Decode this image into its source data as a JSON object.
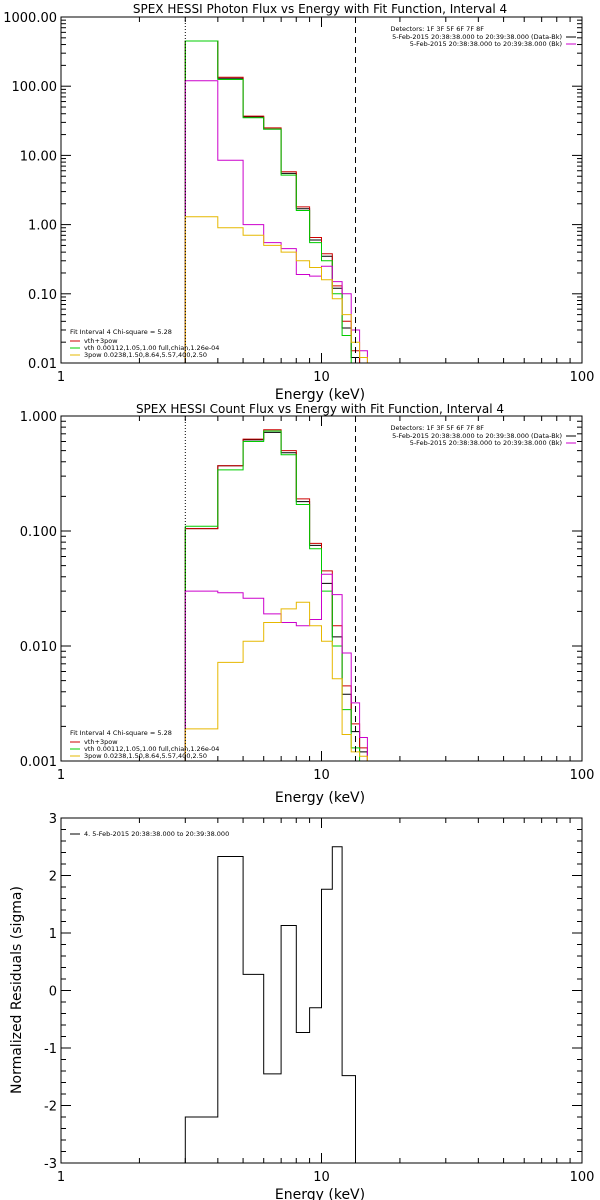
{
  "chart_data": [
    {
      "type": "line",
      "title": "SPEX HESSI Photon Flux vs Energy with Fit Function, Interval 4",
      "xlabel": "Energy (keV)",
      "ylabel": "",
      "x_scale": "log",
      "y_scale": "log",
      "xlim": [
        1,
        100
      ],
      "ylim": [
        0.01,
        1000
      ],
      "x_ticks": [
        "1",
        "10",
        "100"
      ],
      "y_ticks": [
        "0.01",
        "0.10",
        "1.00",
        "10.00",
        "100.00",
        "1000.00"
      ],
      "grid": false,
      "bin_edges": [
        3,
        4,
        5,
        6,
        7,
        8,
        9,
        10,
        11,
        12,
        13,
        14,
        15,
        16.5
      ],
      "dotted_line_x": 3,
      "dashed_line_x": 13.5,
      "header": {
        "detectors": "Detectors: 1F 3F 5F 6F 7F 8F",
        "lines": [
          {
            "text": "5-Feb-2015 20:38:38.000 to 20:39:38.000 (Data-Bk)",
            "color": "#000000"
          },
          {
            "text": "5-Feb-2015 20:38:38.000 to 20:39:38.000 (Bk)",
            "color": "#cc00cc"
          }
        ]
      },
      "legend": {
        "title": "Fit Interval  4   Chi-square = 5.28",
        "position": "bottom-left",
        "items": [
          {
            "text": "vth+3pow",
            "color": "#cc0000"
          },
          {
            "text": "vth 0.00112,1.05,1.00  full,chian,1.26e-04",
            "color": "#00cc00"
          },
          {
            "text": "3pow 0.0238,1.50,8.64,5.57,400,2.50",
            "color": "#e6b800"
          }
        ]
      },
      "series": [
        {
          "color": "#000000",
          "values": [
            450,
            130,
            36,
            24,
            5.5,
            1.7,
            0.6,
            0.35,
            0.12,
            0.032,
            0.012,
            0.009,
            0.009
          ]
        },
        {
          "color": "#cc0000",
          "values": [
            450,
            135,
            37,
            25,
            5.8,
            1.8,
            0.65,
            0.38,
            0.13,
            0.04,
            0.015,
            0.01,
            0.009
          ]
        },
        {
          "color": "#00cc00",
          "values": [
            450,
            125,
            35,
            24,
            5.2,
            1.6,
            0.55,
            0.3,
            0.1,
            0.025,
            0.009,
            0.008,
            0.008
          ]
        },
        {
          "color": "#cc00cc",
          "values": [
            120,
            8.5,
            1.0,
            0.55,
            0.45,
            0.19,
            0.18,
            0.25,
            0.15,
            0.1,
            0.03,
            0.015,
            0.01
          ]
        },
        {
          "color": "#e6b800",
          "values": [
            1.3,
            0.9,
            0.7,
            0.5,
            0.4,
            0.3,
            0.24,
            0.16,
            0.085,
            0.05,
            0.02,
            0.012,
            0.01
          ]
        }
      ]
    },
    {
      "type": "line",
      "title": "SPEX HESSI Count Flux vs Energy with Fit Function, Interval 4",
      "xlabel": "Energy (keV)",
      "ylabel": "",
      "x_scale": "log",
      "y_scale": "log",
      "xlim": [
        1,
        100
      ],
      "ylim": [
        0.001,
        1
      ],
      "x_ticks": [
        "1",
        "10",
        "100"
      ],
      "y_ticks": [
        "0.001",
        "0.010",
        "0.100",
        "1.000"
      ],
      "grid": false,
      "bin_edges": [
        3,
        4,
        5,
        6,
        7,
        8,
        9,
        10,
        11,
        12,
        13,
        14,
        15,
        16.5
      ],
      "dotted_line_x": 3,
      "dashed_line_x": 13.5,
      "header": {
        "detectors": "Detectors: 1F 3F 5F 6F 7F 8F",
        "lines": [
          {
            "text": "5-Feb-2015 20:38:38.000 to 20:39:38.000 (Data-Bk)",
            "color": "#000000"
          },
          {
            "text": "5-Feb-2015 20:38:38.000 to 20:39:38.000 (Bk)",
            "color": "#cc00cc"
          }
        ]
      },
      "legend": {
        "title": "Fit Interval  4   Chi-square = 5.28",
        "position": "bottom-left",
        "items": [
          {
            "text": "vth+3pow",
            "color": "#cc0000"
          },
          {
            "text": "vth 0.00112,1.05,1.00  full,chian,1.26e-04",
            "color": "#00cc00"
          },
          {
            "text": "3pow 0.0238,1.50,8.64,5.57,400,2.50",
            "color": "#e6b800"
          }
        ]
      },
      "series": [
        {
          "color": "#000000",
          "values": [
            0.105,
            0.37,
            0.62,
            0.72,
            0.48,
            0.18,
            0.075,
            0.035,
            0.012,
            0.0038,
            0.0018,
            0.0012,
            0.001
          ]
        },
        {
          "color": "#cc0000",
          "values": [
            0.105,
            0.37,
            0.63,
            0.76,
            0.5,
            0.19,
            0.078,
            0.045,
            0.015,
            0.0045,
            0.0021,
            0.0013,
            0.001
          ]
        },
        {
          "color": "#00cc00",
          "values": [
            0.11,
            0.34,
            0.6,
            0.74,
            0.46,
            0.17,
            0.07,
            0.03,
            0.01,
            0.0028,
            0.0013,
            0.001,
            0.001
          ]
        },
        {
          "color": "#cc00cc",
          "values": [
            0.03,
            0.029,
            0.026,
            0.019,
            0.016,
            0.015,
            0.017,
            0.042,
            0.028,
            0.0087,
            0.0032,
            0.0016,
            0.001
          ]
        },
        {
          "color": "#e6b800",
          "values": [
            0.0019,
            0.0072,
            0.011,
            0.016,
            0.021,
            0.024,
            0.015,
            0.011,
            0.0052,
            0.0017,
            0.0012,
            0.0011,
            0.001
          ]
        }
      ]
    },
    {
      "type": "line",
      "title": "",
      "xlabel": "Energy (keV)",
      "ylabel": "Normalized Residuals (sigma)",
      "x_scale": "log",
      "y_scale": "linear",
      "xlim": [
        1,
        100
      ],
      "ylim": [
        -3,
        3
      ],
      "x_ticks": [
        "1",
        "10",
        "100"
      ],
      "y_ticks": [
        "-3",
        "-2",
        "-1",
        "0",
        "1",
        "2",
        "3"
      ],
      "grid": false,
      "bin_edges": [
        3,
        4,
        5,
        6,
        7,
        8,
        9,
        10,
        11,
        12,
        13.5
      ],
      "legend": {
        "items": [
          {
            "text": "4.  5-Feb-2015 20:38:38.000 to 20:39:38.000",
            "color": "#000000"
          }
        ],
        "position": "top-left"
      },
      "series": [
        {
          "color": "#000000",
          "values": [
            -2.2,
            2.33,
            0.28,
            -1.45,
            1.13,
            -0.73,
            -0.3,
            1.76,
            2.5,
            -1.48
          ]
        }
      ]
    }
  ]
}
